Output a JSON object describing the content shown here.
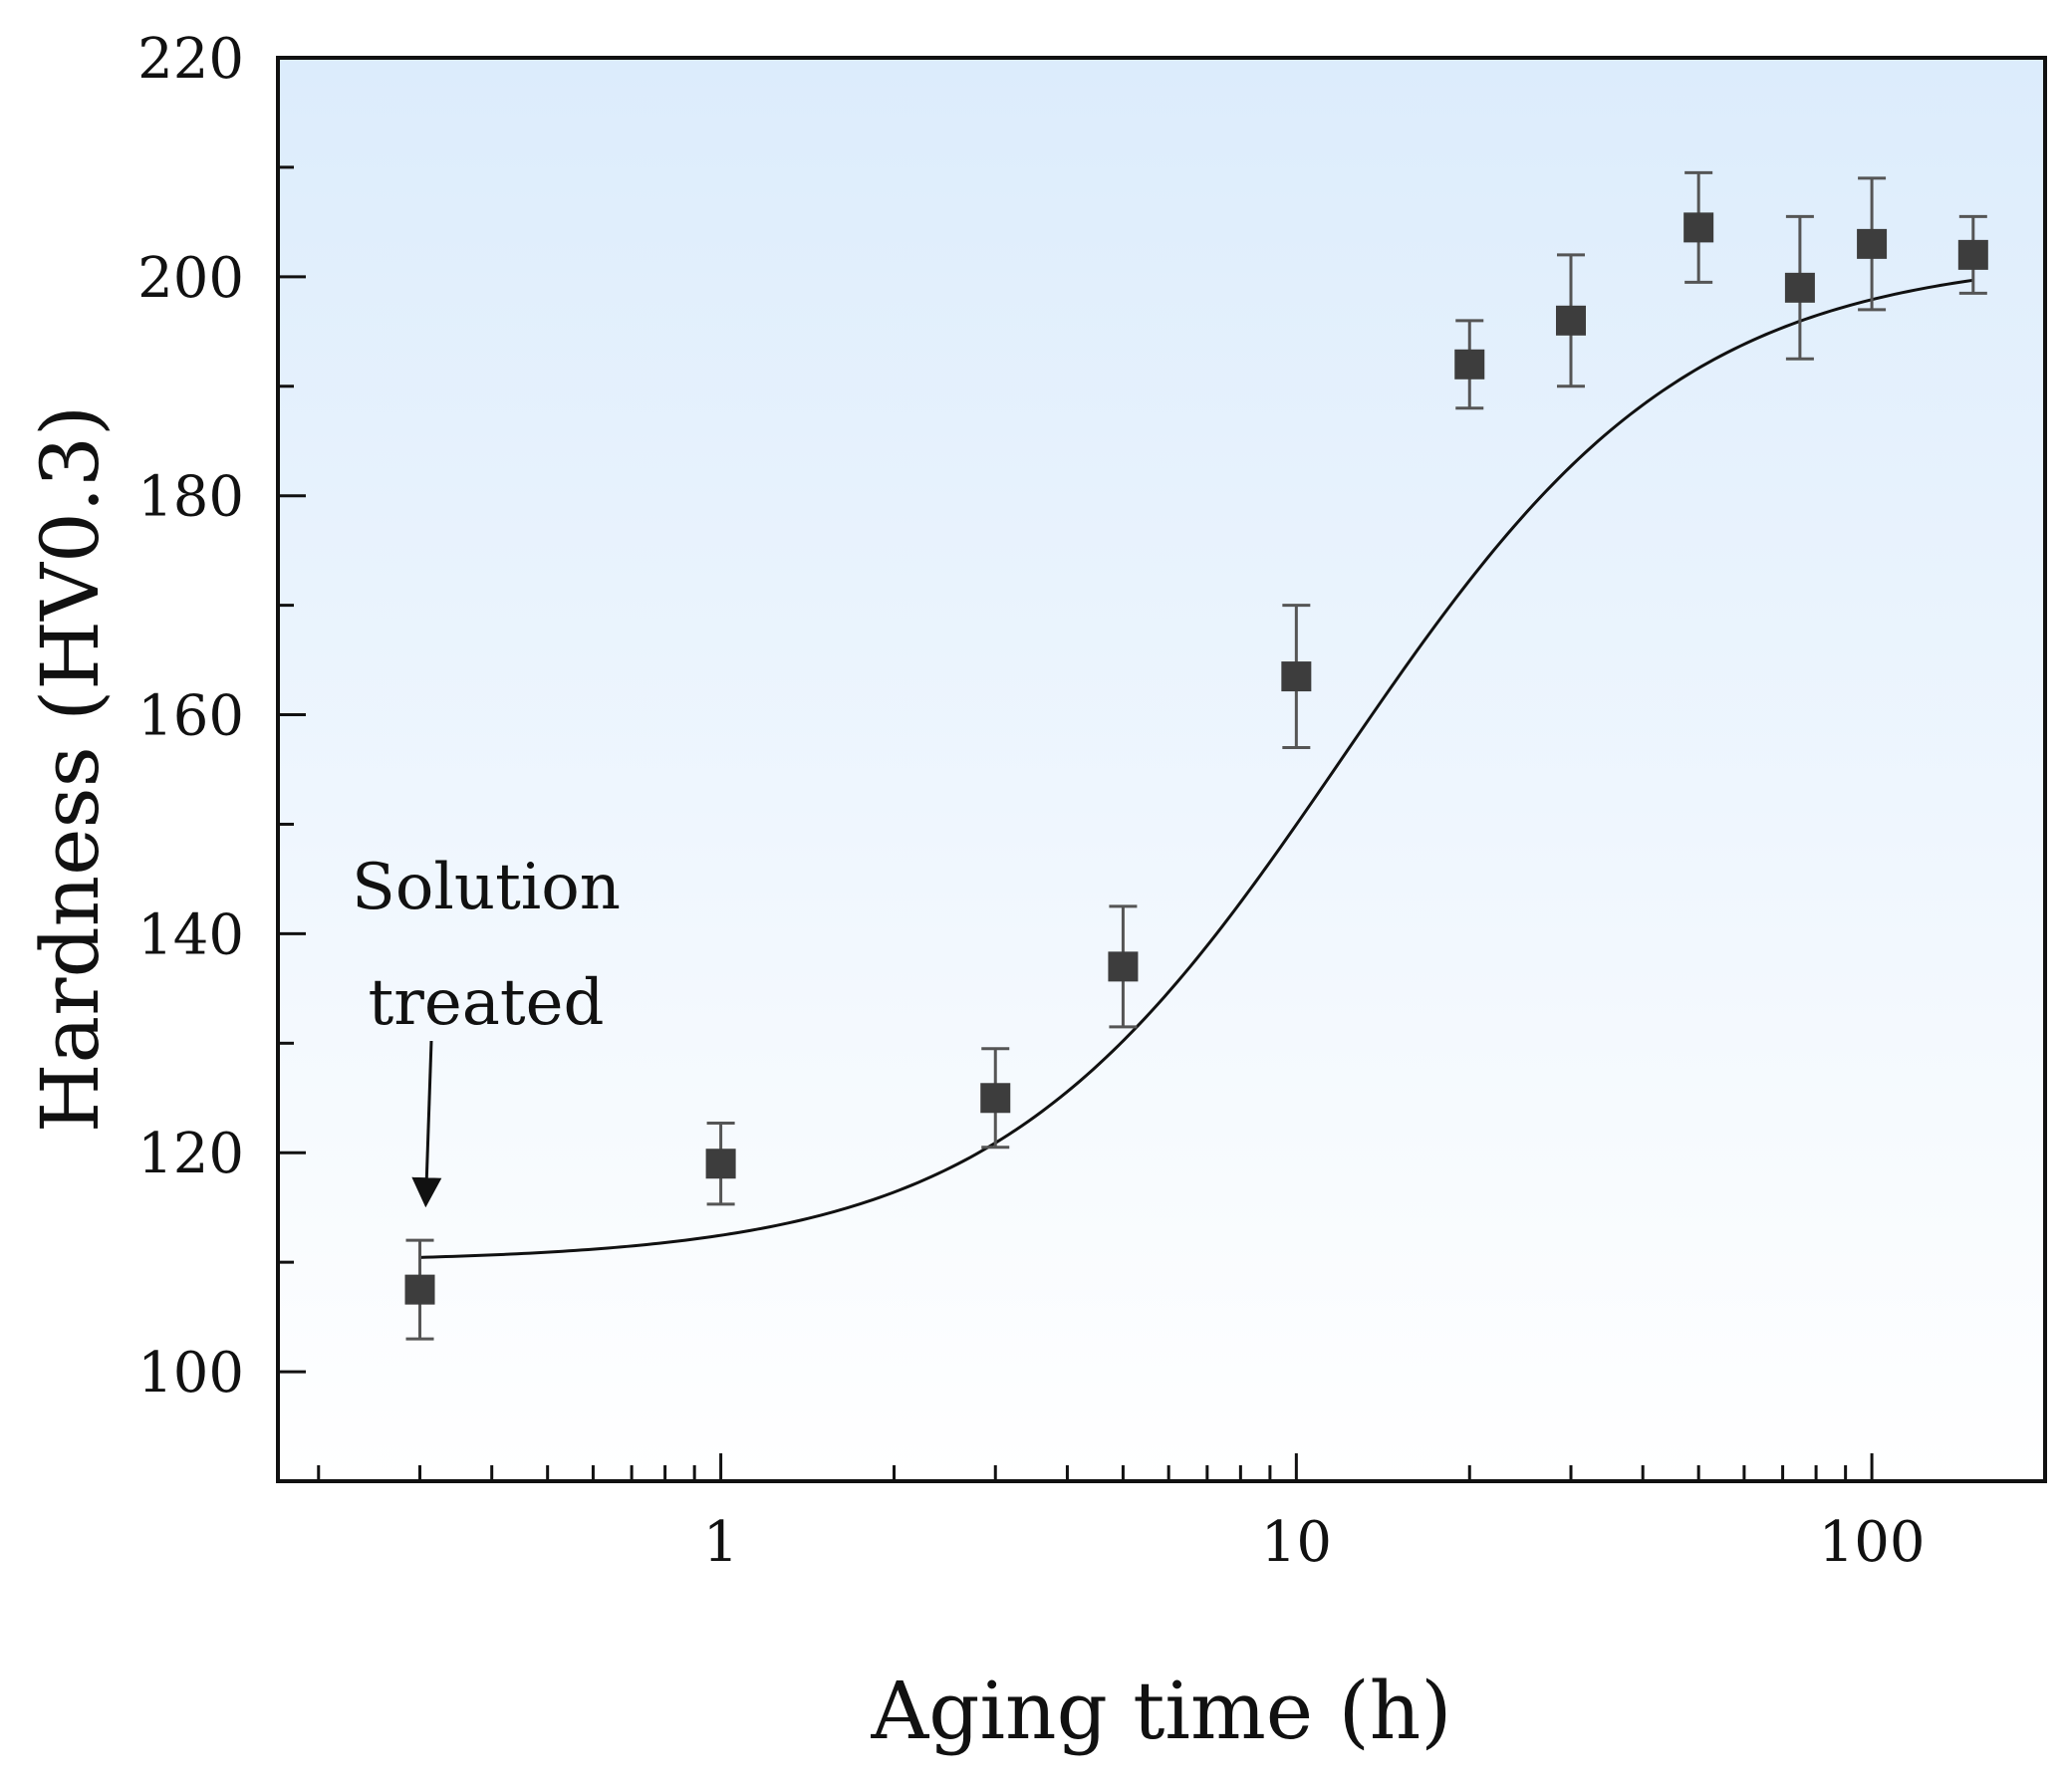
{
  "chart_data": {
    "type": "scatter",
    "xscale": "log",
    "xlabel": "Aging time (h)",
    "ylabel": "Hardness (HV0.3)",
    "xlim": [
      0.17,
      200
    ],
    "ylim": [
      90,
      220
    ],
    "x_major_ticks": [
      1,
      10,
      100
    ],
    "x_tick_labels": [
      "1",
      "10",
      "100"
    ],
    "y_major_ticks": [
      100,
      120,
      140,
      160,
      180,
      200,
      220
    ],
    "y_tick_labels": [
      "100",
      "120",
      "140",
      "160",
      "180",
      "200",
      "220"
    ],
    "series": [
      {
        "name": "Hardness",
        "marker": "square",
        "color": "#3d3d3d",
        "x": [
          0.3,
          1,
          3,
          5,
          10,
          20,
          30,
          50,
          75,
          100,
          150
        ],
        "y": [
          107.5,
          119,
          125,
          137,
          163.5,
          192,
          196,
          204.5,
          199,
          203,
          202
        ],
        "yerr": [
          4.5,
          3.7,
          4.5,
          5.5,
          6.5,
          4.0,
          6.0,
          5.0,
          6.5,
          6.0,
          3.5
        ]
      }
    ],
    "fit_curve": {
      "model": "sigmoid in log10(time)",
      "lower_plateau": 110,
      "upper_plateau": 202,
      "center_hours": 12,
      "log_width": 0.3
    },
    "annotation": {
      "line1": "Solution",
      "line2": "treated",
      "target_x": 0.3,
      "target_y": 115
    },
    "background_gradient": [
      "#dcecfc",
      "#ffffff"
    ]
  }
}
